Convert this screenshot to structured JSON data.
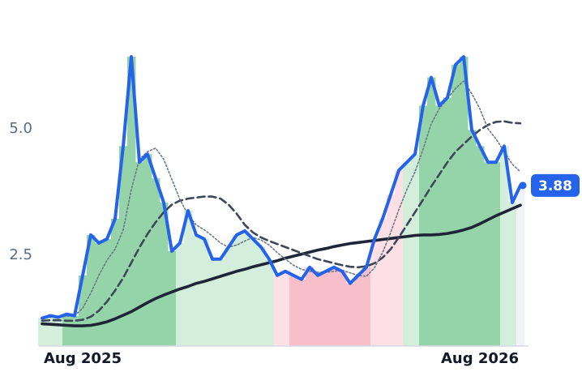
{
  "chart_data": {
    "type": "line",
    "categories": [
      null,
      null,
      null,
      null,
      null,
      "Aug 2025",
      null,
      null,
      null,
      null,
      null,
      null,
      null,
      null,
      null,
      null,
      null,
      null,
      null,
      null,
      null,
      null,
      null,
      null,
      null,
      null,
      null,
      null,
      null,
      null,
      null,
      null,
      null,
      null,
      null,
      null,
      null,
      null,
      null,
      null,
      null,
      null,
      null,
      null,
      null,
      null,
      null,
      null,
      null,
      null,
      null,
      null,
      null,
      null,
      "Aug 2026",
      null,
      null,
      null,
      null,
      null
    ],
    "series": [
      {
        "color": "#2563eb",
        "style": "solid",
        "width": 4,
        "label_last": true,
        "values": [
          1.25,
          1.3,
          1.27,
          1.33,
          1.3,
          2.1,
          2.9,
          2.74,
          2.82,
          3.22,
          4.66,
          6.43,
          4.34,
          4.5,
          4.02,
          3.54,
          2.58,
          2.74,
          3.38,
          2.9,
          2.82,
          2.42,
          2.42,
          2.66,
          2.9,
          2.98,
          2.82,
          2.66,
          2.42,
          2.1,
          2.18,
          2.1,
          2.02,
          2.26,
          2.1,
          2.18,
          2.26,
          2.18,
          1.94,
          2.1,
          2.26,
          2.82,
          3.22,
          3.7,
          4.18,
          4.34,
          4.5,
          5.46,
          6.02,
          5.46,
          5.62,
          6.27,
          6.43,
          4.98,
          4.66,
          4.34,
          4.34,
          4.66,
          3.54,
          3.88
        ],
        "fill_colors": [
          "#d3eedb",
          "#d3eedb",
          "#d3eedb",
          "#95d4a8",
          "#95d4a8",
          "#95d4a8",
          "#95d4a8",
          "#95d4a8",
          "#95d4a8",
          "#95d4a8",
          "#95d4a8",
          "#95d4a8",
          "#95d4a8",
          "#95d4a8",
          "#95d4a8",
          "#95d4a8",
          "#95d4a8",
          "#d3eedb",
          "#d3eedb",
          "#d3eedb",
          "#d3eedb",
          "#d3eedb",
          "#d3eedb",
          "#d3eedb",
          "#d3eedb",
          "#d3eedb",
          "#d3eedb",
          "#d3eedb",
          "#d3eedb",
          "#fde0e5",
          "#fde0e5",
          "#f8bfca",
          "#f8bfca",
          "#f8bfca",
          "#f8bfca",
          "#f8bfca",
          "#f8bfca",
          "#f8bfca",
          "#f8bfca",
          "#f8bfca",
          "#f8bfca",
          "#fde0e5",
          "#fde0e5",
          "#fde0e5",
          "#fde0e5",
          "#d3eedb",
          "#d3eedb",
          "#95d4a8",
          "#95d4a8",
          "#95d4a8",
          "#95d4a8",
          "#95d4a8",
          "#95d4a8",
          "#95d4a8",
          "#95d4a8",
          "#95d4a8",
          "#95d4a8",
          "#d3eedb",
          "#d3eedb",
          "#f1f3f7"
        ]
      },
      {
        "color": "#6b7689",
        "style": "dotted",
        "width": 1.6,
        "values": [
          1.25,
          1.27,
          1.28,
          1.29,
          1.3,
          1.45,
          1.75,
          2.1,
          2.4,
          2.62,
          3.0,
          3.8,
          4.4,
          4.55,
          4.62,
          4.4,
          4.0,
          3.6,
          3.3,
          3.1,
          3.0,
          2.88,
          2.74,
          2.66,
          2.7,
          2.78,
          2.85,
          2.8,
          2.7,
          2.55,
          2.42,
          2.3,
          2.22,
          2.18,
          2.16,
          2.16,
          2.18,
          2.2,
          2.15,
          2.1,
          2.08,
          2.25,
          2.55,
          2.95,
          3.4,
          3.8,
          4.15,
          4.6,
          5.1,
          5.4,
          5.6,
          5.8,
          5.95,
          5.7,
          5.4,
          5.0,
          4.8,
          4.55,
          4.3,
          4.15
        ]
      },
      {
        "color": "#3d4759",
        "style": "dashed",
        "width": 2.6,
        "values": [
          1.2,
          1.21,
          1.21,
          1.2,
          1.2,
          1.22,
          1.28,
          1.4,
          1.58,
          1.8,
          2.05,
          2.35,
          2.65,
          2.92,
          3.15,
          3.35,
          3.5,
          3.58,
          3.62,
          3.64,
          3.66,
          3.66,
          3.62,
          3.5,
          3.32,
          3.1,
          2.95,
          2.85,
          2.78,
          2.72,
          2.66,
          2.6,
          2.54,
          2.48,
          2.42,
          2.38,
          2.34,
          2.3,
          2.27,
          2.26,
          2.28,
          2.34,
          2.45,
          2.62,
          2.85,
          3.1,
          3.35,
          3.6,
          3.86,
          4.1,
          4.34,
          4.55,
          4.7,
          4.85,
          4.98,
          5.08,
          5.14,
          5.15,
          5.12,
          5.11
        ]
      },
      {
        "color": "#1e2537",
        "style": "solid",
        "width": 3.6,
        "values": [
          1.14,
          1.13,
          1.12,
          1.11,
          1.1,
          1.1,
          1.11,
          1.14,
          1.18,
          1.24,
          1.31,
          1.38,
          1.47,
          1.56,
          1.64,
          1.71,
          1.77,
          1.83,
          1.88,
          1.94,
          1.98,
          2.03,
          2.08,
          2.13,
          2.18,
          2.22,
          2.27,
          2.31,
          2.35,
          2.39,
          2.44,
          2.48,
          2.52,
          2.56,
          2.6,
          2.63,
          2.67,
          2.7,
          2.73,
          2.75,
          2.77,
          2.79,
          2.81,
          2.83,
          2.85,
          2.87,
          2.89,
          2.9,
          2.9,
          2.91,
          2.93,
          2.96,
          3.0,
          3.05,
          3.12,
          3.2,
          3.28,
          3.35,
          3.42,
          3.49
        ]
      }
    ],
    "ylim": [
      0.7,
      7.2
    ],
    "yticks": [
      2.5,
      {
        "value": 5,
        "label": "5.0"
      }
    ],
    "grid": false
  }
}
